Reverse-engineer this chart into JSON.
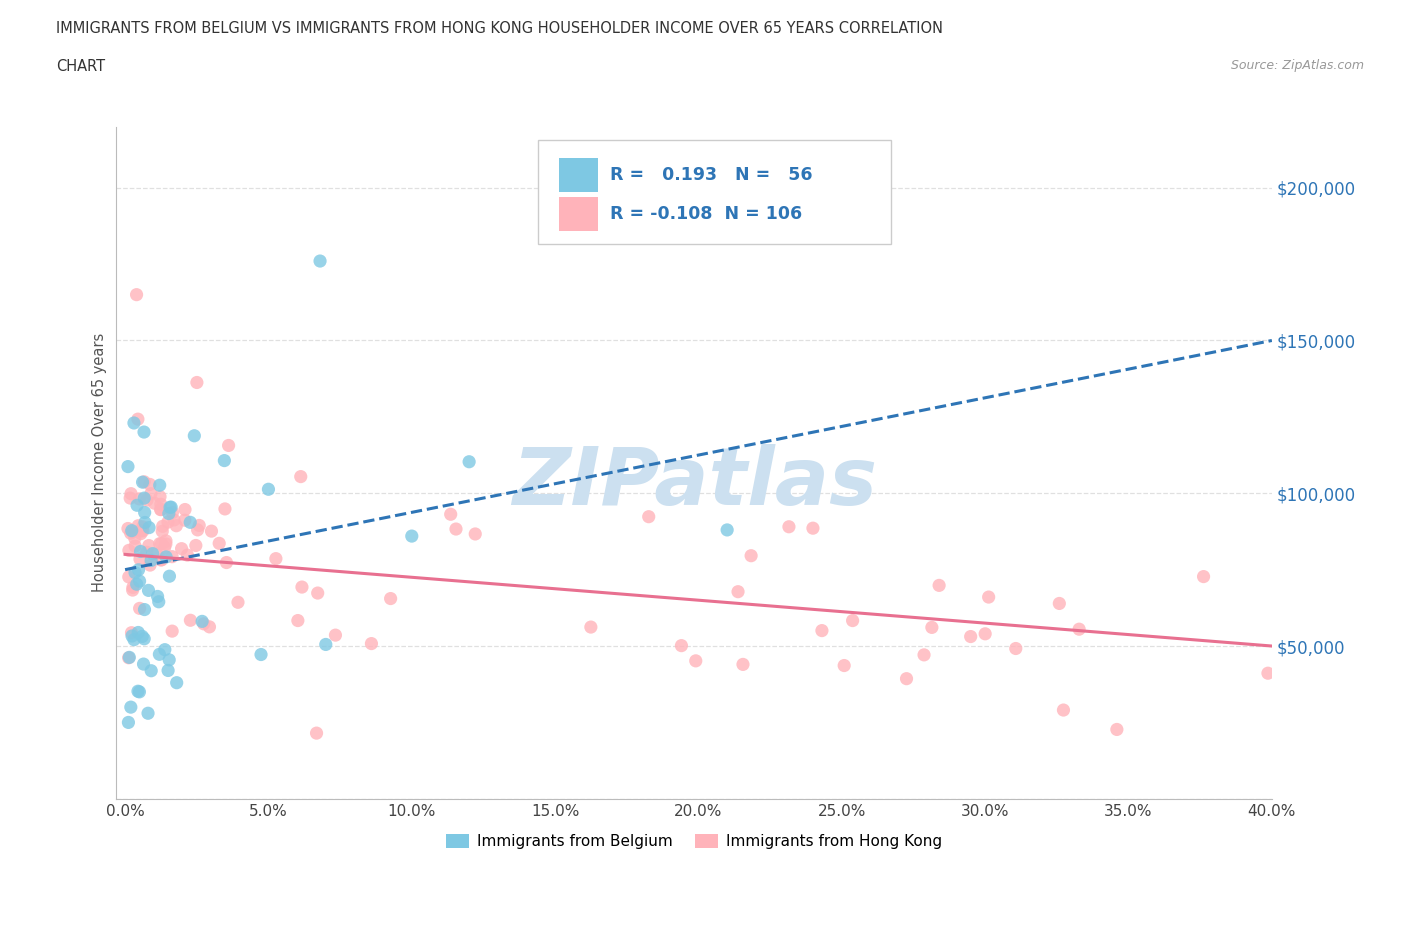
{
  "title_line1": "IMMIGRANTS FROM BELGIUM VS IMMIGRANTS FROM HONG KONG HOUSEHOLDER INCOME OVER 65 YEARS CORRELATION",
  "title_line2": "CHART",
  "source_text": "Source: ZipAtlas.com",
  "ylabel": "Householder Income Over 65 years",
  "xlim": [
    0.0,
    0.4
  ],
  "ylim": [
    0,
    220000
  ],
  "yticks": [
    0,
    50000,
    100000,
    150000,
    200000
  ],
  "ytick_labels": [
    "",
    "$50,000",
    "$100,000",
    "$150,000",
    "$200,000"
  ],
  "xtick_labels": [
    "0.0%",
    "5.0%",
    "10.0%",
    "15.0%",
    "20.0%",
    "25.0%",
    "30.0%",
    "35.0%",
    "40.0%"
  ],
  "xticks": [
    0.0,
    0.05,
    0.1,
    0.15,
    0.2,
    0.25,
    0.3,
    0.35,
    0.4
  ],
  "belgium_color": "#7ec8e3",
  "hongkong_color": "#ffb3ba",
  "belgium_R": 0.193,
  "belgium_N": 56,
  "hongkong_R": -0.108,
  "hongkong_N": 106,
  "belgium_line_color": "#2e75b6",
  "hongkong_line_color": "#e87090",
  "watermark": "ZIPatlas",
  "watermark_color": "#cce0f0",
  "legend_label_belgium": "Immigrants from Belgium",
  "legend_label_hongkong": "Immigrants from Hong Kong",
  "background_color": "#ffffff",
  "grid_color": "#dddddd",
  "stat_color": "#2e75b6",
  "title_color": "#333333",
  "source_color": "#999999",
  "ylabel_color": "#555555"
}
